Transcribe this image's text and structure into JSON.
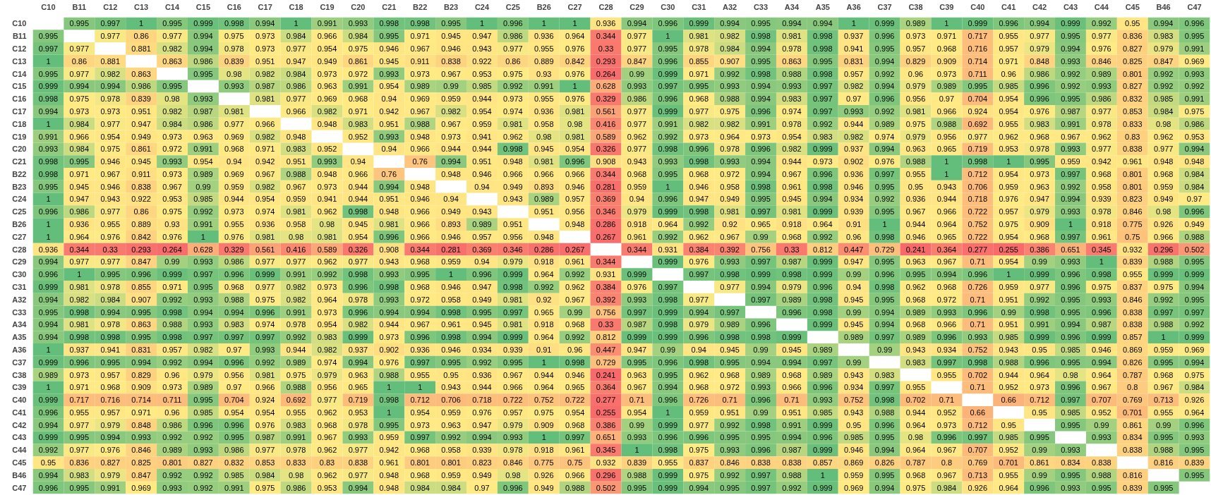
{
  "chart_data": {
    "type": "heatmap",
    "data_labels": true,
    "categories": [
      "C10",
      "B11",
      "C12",
      "C13",
      "C14",
      "C15",
      "C16",
      "C17",
      "C18",
      "C19",
      "C20",
      "C21",
      "B22",
      "B23",
      "C24",
      "C25",
      "B26",
      "C27",
      "C28",
      "C29",
      "C30",
      "C31",
      "A32",
      "C33",
      "A34",
      "A35",
      "A36",
      "C37",
      "C38",
      "C39",
      "C40",
      "C41",
      "C42",
      "C43",
      "C44",
      "C45",
      "B46",
      "C47"
    ],
    "y_categories": [
      "C10",
      "B11",
      "C12",
      "C13",
      "C14",
      "C15",
      "C16",
      "C17",
      "C18",
      "C19",
      "C20",
      "C21",
      "B22",
      "B23",
      "C24",
      "C25",
      "B26",
      "C27",
      "C28",
      "C29",
      "C30",
      "C31",
      "A32",
      "C33",
      "A34",
      "A35",
      "A36",
      "C37",
      "C38",
      "C39",
      "C40",
      "C41",
      "C42",
      "C43",
      "C44",
      "C45",
      "B46",
      "C47"
    ],
    "cells": [
      [
        null,
        0.995,
        0.997,
        1,
        0.995,
        0.999,
        0.998,
        0.994,
        1,
        0.991,
        0.993,
        0.998,
        0.998,
        0.995,
        1,
        0.996,
        1,
        1,
        0.936,
        0.994,
        0.996,
        0.999,
        0.994,
        0.995,
        0.994,
        0.994,
        1,
        0.999,
        0.989,
        1,
        0.999,
        0.996,
        0.994,
        0.999,
        0.992,
        0.95,
        0.994,
        0.996
      ],
      [
        0.995,
        null,
        0.977,
        0.86,
        0.977,
        0.994,
        0.975,
        0.973,
        0.984,
        0.966,
        0.984,
        0.995,
        0.971,
        0.945,
        0.947,
        0.986,
        0.936,
        0.964,
        0.344,
        0.977,
        1,
        0.981,
        0.982,
        0.998,
        0.981,
        0.998,
        0.937,
        0.996,
        0.973,
        0.971,
        0.717,
        0.955,
        0.977,
        0.995,
        0.977,
        0.836,
        0.983,
        0.995
      ],
      [
        0.997,
        0.977,
        null,
        0.881,
        0.982,
        0.994,
        0.978,
        0.973,
        0.977,
        0.954,
        0.975,
        0.946,
        0.967,
        0.946,
        0.943,
        0.977,
        0.955,
        0.976,
        0.33,
        0.977,
        0.995,
        0.978,
        0.984,
        0.994,
        0.978,
        0.998,
        0.941,
        0.995,
        0.957,
        0.968,
        0.716,
        0.957,
        0.979,
        0.994,
        0.976,
        0.827,
        0.979,
        0.991
      ],
      [
        1,
        0.86,
        0.881,
        null,
        0.863,
        0.986,
        0.839,
        0.951,
        0.947,
        0.949,
        0.861,
        0.945,
        0.911,
        0.838,
        0.922,
        0.86,
        0.889,
        0.842,
        0.293,
        0.847,
        0.996,
        0.855,
        0.907,
        0.995,
        0.863,
        0.995,
        0.831,
        0.994,
        0.829,
        0.909,
        0.714,
        0.971,
        0.848,
        0.993,
        0.846,
        0.825,
        0.847,
        0.969
      ],
      [
        0.995,
        0.977,
        0.982,
        0.863,
        null,
        0.995,
        0.98,
        0.982,
        0.984,
        0.973,
        0.972,
        0.993,
        0.973,
        0.967,
        0.953,
        0.975,
        0.93,
        0.976,
        0.264,
        0.99,
        0.999,
        0.971,
        0.992,
        0.998,
        0.988,
        0.998,
        0.957,
        0.992,
        0.96,
        0.973,
        0.711,
        0.96,
        0.986,
        0.992,
        0.989,
        0.801,
        0.992,
        0.993
      ],
      [
        0.999,
        0.994,
        0.994,
        0.986,
        0.995,
        null,
        0.993,
        0.987,
        0.986,
        0.963,
        0.991,
        0.954,
        0.989,
        0.99,
        0.985,
        0.992,
        0.991,
        1,
        0.628,
        0.993,
        0.997,
        0.995,
        0.993,
        0.994,
        0.993,
        0.997,
        0.982,
        0.994,
        0.979,
        0.989,
        0.995,
        0.985,
        0.996,
        0.992,
        0.993,
        0.827,
        0.992,
        0.992
      ],
      [
        0.998,
        0.975,
        0.978,
        0.839,
        0.98,
        0.993,
        null,
        0.981,
        0.977,
        0.969,
        0.968,
        0.94,
        0.969,
        0.959,
        0.944,
        0.973,
        0.955,
        0.976,
        0.329,
        0.986,
        0.996,
        0.968,
        0.988,
        0.994,
        0.983,
        0.997,
        0.97,
        0.996,
        0.956,
        0.97,
        0.704,
        0.954,
        0.996,
        0.995,
        0.986,
        0.832,
        0.985,
        0.991
      ],
      [
        0.994,
        0.973,
        0.973,
        0.951,
        0.982,
        0.987,
        0.981,
        null,
        0.966,
        0.982,
        0.971,
        0.942,
        0.967,
        0.982,
        0.954,
        0.974,
        0.936,
        0.981,
        0.561,
        0.977,
        0.999,
        0.977,
        0.975,
        0.996,
        0.974,
        0.997,
        0.993,
        0.992,
        0.981,
        0.966,
        0.924,
        0.954,
        0.976,
        0.987,
        0.977,
        0.853,
        0.984,
        0.975
      ],
      [
        1,
        0.984,
        0.977,
        0.947,
        0.984,
        0.986,
        0.977,
        0.966,
        null,
        0.948,
        0.983,
        0.951,
        0.988,
        0.967,
        0.959,
        0.981,
        0.958,
        0.98,
        0.416,
        0.977,
        0.991,
        0.982,
        0.982,
        0.991,
        0.978,
        0.992,
        0.944,
        0.989,
        0.975,
        0.988,
        0.692,
        0.955,
        0.983,
        0.991,
        0.978,
        0.833,
        0.98,
        0.986
      ],
      [
        0.991,
        0.966,
        0.954,
        0.949,
        0.973,
        0.963,
        0.969,
        0.982,
        0.948,
        null,
        0.952,
        0.993,
        0.948,
        0.973,
        0.941,
        0.962,
        0.98,
        0.981,
        0.589,
        0.962,
        0.992,
        0.973,
        0.964,
        0.973,
        0.954,
        0.983,
        0.982,
        0.974,
        0.979,
        0.956,
        0.977,
        0.962,
        0.968,
        0.967,
        0.962,
        0.83,
        0.962,
        0.953
      ],
      [
        0.993,
        0.984,
        0.975,
        0.861,
        0.972,
        0.991,
        0.968,
        0.971,
        0.983,
        0.952,
        null,
        0.94,
        0.966,
        0.944,
        0.944,
        0.998,
        0.945,
        0.954,
        0.326,
        0.977,
        0.998,
        0.996,
        0.978,
        0.996,
        0.982,
        0.999,
        0.937,
        0.994,
        0.963,
        0.965,
        0.719,
        0.953,
        0.978,
        0.993,
        0.977,
        0.838,
        0.977,
        0.994
      ],
      [
        0.998,
        0.995,
        0.946,
        0.945,
        0.993,
        0.954,
        0.94,
        0.942,
        0.951,
        0.993,
        0.94,
        null,
        0.76,
        0.994,
        0.951,
        0.948,
        0.981,
        0.996,
        0.908,
        0.943,
        0.993,
        0.998,
        0.993,
        0.994,
        0.944,
        0.973,
        0.902,
        0.976,
        0.988,
        1,
        0.998,
        1,
        0.995,
        0.959,
        0.942,
        0.961,
        0.948,
        0.948
      ],
      [
        0.998,
        0.971,
        0.967,
        0.911,
        0.973,
        0.989,
        0.969,
        0.967,
        0.988,
        0.948,
        0.966,
        0.76,
        null,
        0.948,
        0.946,
        0.966,
        0.966,
        0.966,
        0.344,
        0.968,
        0.995,
        0.968,
        0.972,
        0.994,
        0.967,
        0.996,
        0.936,
        0.997,
        0.955,
        1,
        0.712,
        0.954,
        0.973,
        0.997,
        0.968,
        0.801,
        0.968,
        0.984
      ],
      [
        0.995,
        0.945,
        0.946,
        0.838,
        0.967,
        0.99,
        0.959,
        0.982,
        0.967,
        0.973,
        0.944,
        0.994,
        0.948,
        null,
        0.94,
        0.949,
        0.893,
        0.946,
        0.281,
        0.959,
        1,
        0.946,
        0.958,
        0.998,
        0.961,
        0.998,
        0.946,
        0.995,
        0.95,
        0.943,
        0.706,
        0.959,
        0.963,
        0.992,
        0.958,
        0.801,
        0.959,
        0.984
      ],
      [
        1,
        0.947,
        0.943,
        0.922,
        0.953,
        0.985,
        0.944,
        0.954,
        0.959,
        0.941,
        0.944,
        0.951,
        0.946,
        0.94,
        null,
        0.943,
        0.989,
        0.957,
        0.369,
        0.94,
        0.996,
        0.947,
        0.949,
        0.995,
        0.945,
        0.994,
        0.934,
        0.992,
        0.936,
        0.944,
        0.718,
        0.976,
        0.947,
        0.994,
        0.939,
        0.823,
        0.949,
        0.97
      ],
      [
        0.996,
        0.986,
        0.977,
        0.86,
        0.975,
        0.992,
        0.973,
        0.974,
        0.981,
        0.962,
        0.998,
        0.948,
        0.966,
        0.949,
        0.943,
        null,
        0.951,
        0.956,
        0.346,
        0.979,
        0.999,
        0.998,
        0.981,
        0.997,
        0.981,
        0.999,
        0.939,
        0.995,
        0.967,
        0.966,
        0.722,
        0.957,
        0.979,
        0.993,
        0.978,
        0.846,
        0.98,
        0.996
      ],
      [
        1,
        0.936,
        0.955,
        0.889,
        0.93,
        0.991,
        0.955,
        0.936,
        0.958,
        0.98,
        0.945,
        0.981,
        0.966,
        0.893,
        0.989,
        0.951,
        null,
        0.948,
        0.286,
        0.918,
        0.964,
        0.992,
        0.92,
        0.965,
        0.918,
        0.964,
        0.91,
        1,
        0.944,
        0.964,
        0.752,
        0.975,
        0.909,
        1,
        0.918,
        0.775,
        0.926,
        0.949
      ],
      [
        1,
        0.964,
        0.976,
        0.842,
        0.976,
        1,
        0.976,
        0.981,
        0.98,
        0.981,
        0.954,
        0.996,
        0.966,
        0.946,
        0.957,
        0.956,
        0.948,
        null,
        0.267,
        0.961,
        0.992,
        0.962,
        0.967,
        0.99,
        0.968,
        0.992,
        0.96,
        0.998,
        0.946,
        0.965,
        0.722,
        0.954,
        0.968,
        0.997,
        0.961,
        0.75,
        0.966,
        0.988
      ],
      [
        0.936,
        0.344,
        0.33,
        0.293,
        0.264,
        0.628,
        0.329,
        0.561,
        0.416,
        0.589,
        0.326,
        0.908,
        0.344,
        0.281,
        0.369,
        0.346,
        0.286,
        0.267,
        null,
        0.344,
        0.931,
        0.384,
        0.392,
        0.756,
        0.33,
        0.812,
        0.447,
        0.729,
        0.241,
        0.364,
        0.277,
        0.255,
        0.386,
        0.651,
        0.345,
        0.932,
        0.296,
        0.502
      ],
      [
        0.994,
        0.977,
        0.977,
        0.847,
        0.99,
        0.993,
        0.986,
        0.977,
        0.977,
        0.962,
        0.977,
        0.943,
        0.968,
        0.959,
        0.94,
        0.979,
        0.918,
        0.961,
        0.344,
        null,
        0.999,
        0.976,
        0.993,
        0.997,
        0.987,
        0.999,
        0.947,
        0.995,
        0.963,
        0.967,
        0.71,
        0.954,
        0.99,
        0.993,
        1,
        0.839,
        0.988,
        0.995
      ],
      [
        0.996,
        1,
        0.995,
        0.996,
        0.999,
        0.997,
        0.996,
        0.999,
        0.991,
        0.992,
        0.998,
        0.993,
        0.995,
        1,
        0.996,
        0.999,
        0.964,
        0.992,
        0.931,
        0.999,
        null,
        0.997,
        0.998,
        0.999,
        0.998,
        0.999,
        0.99,
        0.996,
        0.995,
        0.994,
        0.996,
        1,
        0.999,
        0.996,
        0.998,
        0.955,
        0.999,
        0.999
      ],
      [
        0.999,
        0.981,
        0.978,
        0.855,
        0.971,
        0.995,
        0.968,
        0.977,
        0.982,
        0.973,
        0.996,
        0.998,
        0.968,
        0.946,
        0.947,
        0.998,
        0.992,
        0.962,
        0.384,
        0.976,
        0.997,
        null,
        0.977,
        0.994,
        0.979,
        0.996,
        0.94,
        0.998,
        0.962,
        0.968,
        0.726,
        0.959,
        0.977,
        0.996,
        0.975,
        0.837,
        0.975,
        0.994
      ],
      [
        0.994,
        0.982,
        0.984,
        0.907,
        0.992,
        0.993,
        0.988,
        0.975,
        0.982,
        0.964,
        0.978,
        0.993,
        0.972,
        0.958,
        0.949,
        0.981,
        0.92,
        0.967,
        0.392,
        0.993,
        0.998,
        0.977,
        null,
        0.997,
        0.989,
        0.998,
        0.945,
        0.995,
        0.968,
        0.972,
        0.71,
        0.951,
        0.992,
        0.995,
        0.993,
        0.846,
        0.992,
        0.995
      ],
      [
        0.995,
        0.998,
        0.994,
        0.995,
        0.998,
        0.994,
        0.994,
        0.996,
        0.991,
        0.973,
        0.996,
        0.994,
        0.994,
        0.998,
        0.995,
        0.997,
        0.965,
        0.99,
        0.756,
        0.997,
        0.999,
        0.994,
        0.997,
        null,
        0.996,
        0.998,
        0.99,
        0.994,
        0.989,
        0.993,
        0.996,
        0.99,
        0.998,
        0.995,
        0.996,
        0.838,
        0.997,
        0.997
      ],
      [
        0.994,
        0.981,
        0.978,
        0.863,
        0.988,
        0.993,
        0.983,
        0.974,
        0.978,
        0.954,
        0.982,
        0.944,
        0.967,
        0.961,
        0.945,
        0.981,
        0.918,
        0.968,
        0.33,
        0.987,
        0.998,
        0.979,
        0.989,
        0.996,
        null,
        0.999,
        0.945,
        0.994,
        0.968,
        0.966,
        0.71,
        0.951,
        0.991,
        0.994,
        0.987,
        0.838,
        0.988,
        0.992
      ],
      [
        0.994,
        0.998,
        0.998,
        0.995,
        0.998,
        0.997,
        0.997,
        0.997,
        0.992,
        0.983,
        0.999,
        0.973,
        0.996,
        0.998,
        0.994,
        0.999,
        0.964,
        0.992,
        0.812,
        0.999,
        0.999,
        0.996,
        0.998,
        0.998,
        0.999,
        null,
        0.989,
        0.997,
        0.989,
        0.996,
        0.993,
        0.985,
        0.999,
        0.996,
        0.999,
        0.857,
        1,
        0.999
      ],
      [
        1,
        0.937,
        0.941,
        0.831,
        0.957,
        0.982,
        0.97,
        0.993,
        0.944,
        0.982,
        0.937,
        0.902,
        0.936,
        0.946,
        0.934,
        0.939,
        0.91,
        0.96,
        0.447,
        0.947,
        0.99,
        0.94,
        0.945,
        0.99,
        0.945,
        0.989,
        null,
        0.99,
        0.943,
        0.934,
        0.752,
        0.943,
        0.95,
        0.985,
        0.946,
        0.869,
        0.959,
        0.969
      ],
      [
        0.999,
        0.996,
        0.995,
        0.994,
        0.992,
        0.994,
        0.996,
        0.992,
        0.989,
        0.974,
        0.994,
        0.976,
        0.997,
        0.995,
        0.992,
        0.995,
        1,
        0.998,
        0.729,
        0.995,
        0.996,
        0.998,
        0.995,
        0.994,
        0.994,
        0.997,
        0.99,
        null,
        0.983,
        0.997,
        0.998,
        0.988,
        0.996,
        0.995,
        0.994,
        0.826,
        0.995,
        0.994
      ],
      [
        0.989,
        0.973,
        0.957,
        0.829,
        0.96,
        0.979,
        0.956,
        0.981,
        0.975,
        0.979,
        0.963,
        0.988,
        0.955,
        0.95,
        0.936,
        0.967,
        0.944,
        0.946,
        0.241,
        0.963,
        0.995,
        0.962,
        0.968,
        0.989,
        0.968,
        0.989,
        0.943,
        0.983,
        null,
        0.955,
        0.702,
        0.944,
        0.964,
        0.98,
        0.964,
        0.787,
        0.968,
        0.975
      ],
      [
        1,
        0.971,
        0.968,
        0.909,
        0.973,
        0.989,
        0.97,
        0.966,
        0.988,
        0.956,
        0.965,
        1,
        1,
        0.943,
        0.944,
        0.966,
        0.964,
        0.965,
        0.364,
        0.967,
        0.994,
        0.968,
        0.972,
        0.993,
        0.966,
        0.996,
        0.934,
        0.997,
        0.955,
        null,
        0.71,
        0.952,
        0.973,
        0.996,
        0.967,
        0.8,
        0.967,
        0.984
      ],
      [
        0.999,
        0.717,
        0.716,
        0.714,
        0.711,
        0.995,
        0.704,
        0.924,
        0.692,
        0.977,
        0.719,
        0.998,
        0.712,
        0.706,
        0.718,
        0.722,
        0.752,
        0.722,
        0.277,
        0.71,
        0.996,
        0.726,
        0.71,
        0.996,
        0.71,
        0.993,
        0.752,
        0.998,
        0.702,
        0.71,
        null,
        0.66,
        0.712,
        0.997,
        0.707,
        0.769,
        0.713,
        0.926
      ],
      [
        0.996,
        0.955,
        0.957,
        0.971,
        0.96,
        0.985,
        0.954,
        0.954,
        0.955,
        0.962,
        0.953,
        1,
        0.954,
        0.959,
        0.976,
        0.957,
        0.975,
        0.954,
        0.255,
        0.954,
        1,
        0.959,
        0.951,
        0.99,
        0.951,
        0.985,
        0.943,
        0.988,
        0.944,
        0.952,
        0.66,
        null,
        0.95,
        0.985,
        0.952,
        0.701,
        0.955,
        0.964
      ],
      [
        0.994,
        0.977,
        0.979,
        0.848,
        0.986,
        0.996,
        0.996,
        0.976,
        0.983,
        0.968,
        0.978,
        0.995,
        0.973,
        0.963,
        0.947,
        0.979,
        0.909,
        0.968,
        0.386,
        0.99,
        0.999,
        0.977,
        0.992,
        0.998,
        0.991,
        0.999,
        0.95,
        0.996,
        0.964,
        0.973,
        0.712,
        0.95,
        null,
        0.995,
        0.99,
        0.861,
        0.99,
        0.996
      ],
      [
        0.999,
        0.995,
        0.994,
        0.993,
        0.992,
        0.992,
        0.995,
        0.987,
        0.991,
        0.967,
        0.993,
        0.959,
        0.997,
        0.992,
        0.994,
        0.993,
        1,
        0.997,
        0.651,
        0.993,
        0.996,
        0.996,
        0.995,
        0.995,
        0.994,
        0.996,
        0.985,
        0.995,
        0.98,
        0.996,
        0.997,
        0.985,
        0.995,
        null,
        0.993,
        0.834,
        0.995,
        0.993
      ],
      [
        0.992,
        0.977,
        0.976,
        0.846,
        0.989,
        0.993,
        0.986,
        0.977,
        0.978,
        0.962,
        0.977,
        0.942,
        0.968,
        0.958,
        0.939,
        0.978,
        0.918,
        0.961,
        0.345,
        1,
        0.998,
        0.975,
        0.993,
        0.996,
        0.987,
        0.999,
        0.946,
        0.994,
        0.964,
        0.967,
        0.707,
        0.952,
        0.99,
        0.993,
        null,
        0.838,
        0.988,
        0.995
      ],
      [
        0.95,
        0.836,
        0.827,
        0.825,
        0.801,
        0.827,
        0.832,
        0.853,
        0.833,
        0.83,
        0.838,
        0.961,
        0.801,
        0.801,
        0.823,
        0.846,
        0.775,
        0.75,
        0.932,
        0.839,
        0.955,
        0.837,
        0.846,
        0.838,
        0.838,
        0.857,
        0.869,
        0.826,
        0.787,
        0.8,
        0.769,
        0.701,
        0.861,
        0.834,
        0.838,
        null,
        0.816,
        0.839
      ],
      [
        0.994,
        0.983,
        0.979,
        0.847,
        0.992,
        0.992,
        0.985,
        0.984,
        0.98,
        0.962,
        0.977,
        0.948,
        0.968,
        0.959,
        0.949,
        0.98,
        0.926,
        0.966,
        0.296,
        0.988,
        0.999,
        0.975,
        0.992,
        0.997,
        0.988,
        1,
        0.959,
        0.995,
        0.968,
        0.967,
        0.713,
        0.955,
        0.99,
        0.995,
        0.988,
        0.816,
        null,
        0.995
      ],
      [
        0.996,
        0.995,
        0.991,
        0.969,
        0.993,
        0.992,
        0.991,
        0.975,
        0.986,
        0.953,
        0.994,
        0.948,
        0.984,
        0.984,
        0.97,
        0.996,
        0.949,
        0.988,
        0.502,
        0.995,
        0.999,
        0.994,
        0.995,
        0.997,
        0.992,
        0.999,
        0.969,
        0.994,
        0.975,
        0.984,
        0.926,
        0.964,
        0.996,
        0.993,
        0.995,
        0.839,
        0.995,
        null
      ]
    ]
  }
}
